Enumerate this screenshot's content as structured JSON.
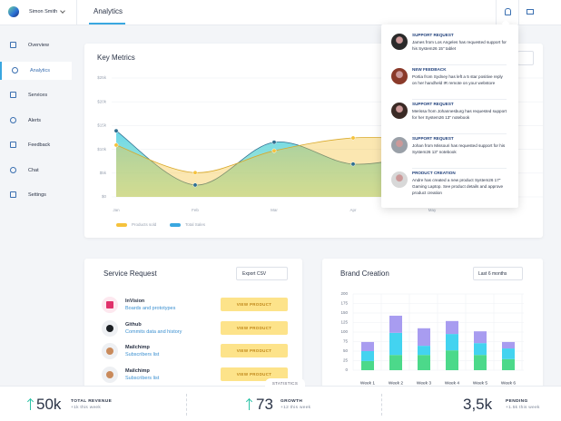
{
  "header": {
    "user": "Simon Smith",
    "tab": "Analytics"
  },
  "sidebar": [
    "Overview",
    "Analytics",
    "Services",
    "Alerts",
    "Feedback",
    "Chat",
    "Settings"
  ],
  "notifications": [
    {
      "title": "SUPPORT REQUEST",
      "text": "James from Los Angeles has requested support for his System26 15\" tablet"
    },
    {
      "title": "NEW FEEDBACK",
      "text": "Portia from Sydney has left a 5 star positive reply on her handheld IR remote on your webstore"
    },
    {
      "title": "SUPPORT REQUEST",
      "text": "Merissa from Johannesburg has requested support for her System26 13\" notebook"
    },
    {
      "title": "SUPPORT REQUEST",
      "text": "Johan from Missouri has requested support for his System26 13\" notebook"
    },
    {
      "title": "PRODUCT CREATION",
      "text": "Andre has created a new product System26 17\" Gaming Laptop. See product details and approve product creation"
    }
  ],
  "service_request": {
    "title": "Service Request",
    "export": "Export CSV",
    "button": "VIEW PRODUCT",
    "items": [
      {
        "name": "InVision",
        "detail": "Boards and prototypes"
      },
      {
        "name": "Github",
        "detail": "Commits data and history"
      },
      {
        "name": "Mailchimp",
        "detail": "Subscribers list"
      },
      {
        "name": "Mailchimp",
        "detail": "Subscribers list"
      }
    ]
  },
  "statistics_tab": "STATISTICS",
  "stats": [
    {
      "value": "50k",
      "label": "TOTAL REVENUE",
      "change": "+1k this week"
    },
    {
      "value": "73",
      "label": "GROWTH",
      "change": "+12 this week"
    },
    {
      "value": "3,5k",
      "label": "PENDING",
      "change": "+1.5k this week"
    }
  ],
  "chart_data": [
    {
      "type": "area",
      "title": "Key Metrics",
      "categories": [
        "Jan",
        "Feb",
        "Mar",
        "Apr",
        "May"
      ],
      "series": [
        {
          "name": "Products sold",
          "color": "#f5c23c",
          "values": [
            10.9,
            5.1,
            9.7,
            12.4,
            12
          ]
        },
        {
          "name": "Total Sales",
          "color": "#3aa7e0",
          "values": [
            13.9,
            2.5,
            11.5,
            6.9,
            9.4
          ]
        }
      ],
      "ylim": [
        0,
        25
      ],
      "yticks": [
        {
          "value": 0,
          "label": "$0"
        },
        {
          "value": 5,
          "label": "$5k"
        },
        {
          "value": 10,
          "label": "$10k"
        },
        {
          "value": 15,
          "label": "$15k"
        },
        {
          "value": 20,
          "label": "$20k"
        },
        {
          "value": 25,
          "label": "$25k"
        }
      ],
      "grid": true
    },
    {
      "type": "bar",
      "title": "Brand Creation",
      "dropdown": "Last 6 months",
      "stacked": true,
      "categories": [
        "Week 1",
        "Week 2",
        "Week 3",
        "Week 4",
        "Week 5",
        "Week 6"
      ],
      "series": [
        {
          "color": "#4cd98a",
          "values": [
            24,
            40,
            40,
            52,
            40,
            29
          ]
        },
        {
          "color": "#43d3f0",
          "values": [
            26,
            58,
            24,
            43,
            31,
            28
          ]
        },
        {
          "color": "#a89cf0",
          "values": [
            24,
            45,
            46,
            34,
            31,
            17
          ]
        }
      ],
      "ylim": [
        0,
        200
      ],
      "yticks": [
        0,
        25,
        50,
        75,
        100,
        125,
        150,
        175,
        200
      ],
      "grid": true
    }
  ]
}
